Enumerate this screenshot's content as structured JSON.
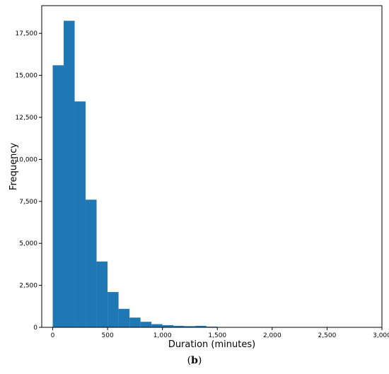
{
  "chart_data": {
    "type": "bar",
    "xlabel": "Duration (minutes)",
    "ylabel": "Frequency",
    "xlim": [
      -100,
      3000
    ],
    "ylim": [
      0,
      19150
    ],
    "bin_width": 100,
    "bins_start": [
      0,
      100,
      200,
      300,
      400,
      500,
      600,
      700,
      800,
      900,
      1000,
      1100,
      1200,
      1300,
      1400
    ],
    "values": [
      15600,
      18250,
      13450,
      7600,
      3920,
      2100,
      1100,
      580,
      330,
      190,
      130,
      90,
      70,
      90,
      40
    ],
    "x_ticks": [
      0,
      500,
      1000,
      1500,
      2000,
      2500,
      3000
    ],
    "x_tick_labels": [
      "0",
      "500",
      "1,000",
      "1,500",
      "2,000",
      "2,500",
      "3,000"
    ],
    "y_ticks": [
      0,
      2500,
      5000,
      7500,
      10000,
      12500,
      15000,
      17500
    ],
    "y_tick_labels": [
      "0",
      "2,500",
      "5,000",
      "7,500",
      "10,000",
      "12,500",
      "15,000",
      "17,500"
    ],
    "bar_color": "#1f77b4",
    "grid": false
  },
  "caption": {
    "open": "(",
    "letter": "b",
    "close": ")"
  }
}
